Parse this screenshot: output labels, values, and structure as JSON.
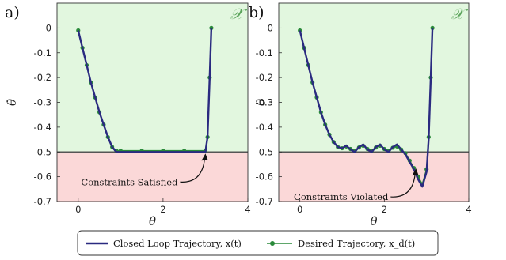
{
  "figure": {
    "legend": {
      "items": [
        {
          "label": "Closed Loop Trajectory, x(t)",
          "color": "#2a2a80",
          "style": "line"
        },
        {
          "label": "Desired Trajectory, x_d(t)",
          "color": "#2a8a3a",
          "style": "line-marker"
        }
      ]
    },
    "colors": {
      "safe_region": "#e2f7df",
      "unsafe_region": "#fbd8d8",
      "boundary": "#555555",
      "closed_loop": "#2a2a80",
      "desired": "#2a8a3a",
      "set_label": "#5aa35a"
    }
  },
  "chart_data": [
    {
      "type": "line",
      "panel_label": "a)",
      "set_label": "𝒳",
      "xlabel": "θ",
      "ylabel": "θ̇",
      "xlim": [
        -0.5,
        4
      ],
      "ylim": [
        -0.7,
        0.1
      ],
      "xticks": [
        0,
        2,
        4
      ],
      "yticks": [
        0,
        -0.1,
        -0.2,
        -0.3,
        -0.4,
        -0.5,
        -0.6,
        -0.7
      ],
      "ytick_labels": [
        "0",
        "-0.1",
        "-0.2",
        "-0.3",
        "-0.4",
        "-0.5",
        "-0.6",
        "-0.7"
      ],
      "constraint_boundary": -0.5,
      "annotation": "Constraints Satisfied",
      "annotation_point": [
        3.0,
        -0.5
      ],
      "series": [
        {
          "key": "closed_loop",
          "x": [
            0,
            0.1,
            0.2,
            0.3,
            0.4,
            0.5,
            0.6,
            0.7,
            0.8,
            0.9,
            1.0,
            1.5,
            2.0,
            2.5,
            3.0,
            3.05,
            3.1,
            3.14
          ],
          "y": [
            -0.01,
            -0.08,
            -0.15,
            -0.22,
            -0.28,
            -0.34,
            -0.39,
            -0.44,
            -0.48,
            -0.5,
            -0.5,
            -0.5,
            -0.5,
            -0.5,
            -0.5,
            -0.44,
            -0.2,
            0
          ]
        },
        {
          "key": "desired",
          "x": [
            0,
            0.1,
            0.2,
            0.3,
            0.4,
            0.5,
            0.6,
            0.7,
            0.8,
            0.9,
            1.0,
            1.5,
            2.0,
            2.5,
            3.0,
            3.05,
            3.1,
            3.14
          ],
          "y": [
            -0.01,
            -0.08,
            -0.15,
            -0.22,
            -0.28,
            -0.34,
            -0.39,
            -0.44,
            -0.48,
            -0.495,
            -0.495,
            -0.495,
            -0.495,
            -0.495,
            -0.495,
            -0.44,
            -0.2,
            0
          ]
        }
      ]
    },
    {
      "type": "line",
      "panel_label": "b)",
      "set_label": "𝒳",
      "xlabel": "θ",
      "ylabel": "θ̇",
      "xlim": [
        -0.5,
        4
      ],
      "ylim": [
        -0.7,
        0.1
      ],
      "xticks": [
        0,
        2,
        4
      ],
      "yticks": [
        0,
        -0.1,
        -0.2,
        -0.3,
        -0.4,
        -0.5,
        -0.6,
        -0.7
      ],
      "ytick_labels": [
        "0",
        "-0.1",
        "-0.2",
        "-0.3",
        "-0.4",
        "-0.5",
        "-0.6",
        "-0.7"
      ],
      "constraint_boundary": -0.5,
      "annotation": "Constraints Violated",
      "annotation_point": [
        2.75,
        -0.56
      ],
      "series": [
        {
          "key": "closed_loop",
          "x": [
            0,
            0.1,
            0.2,
            0.3,
            0.4,
            0.5,
            0.6,
            0.7,
            0.8,
            0.9,
            1.0,
            1.1,
            1.2,
            1.3,
            1.4,
            1.5,
            1.6,
            1.7,
            1.8,
            1.9,
            2.0,
            2.1,
            2.2,
            2.3,
            2.4,
            2.5,
            2.6,
            2.7,
            2.8,
            2.9,
            3.0,
            3.05,
            3.1,
            3.14
          ],
          "y": [
            -0.01,
            -0.08,
            -0.15,
            -0.22,
            -0.28,
            -0.34,
            -0.39,
            -0.43,
            -0.46,
            -0.48,
            -0.485,
            -0.475,
            -0.49,
            -0.5,
            -0.48,
            -0.47,
            -0.49,
            -0.5,
            -0.48,
            -0.47,
            -0.49,
            -0.5,
            -0.48,
            -0.47,
            -0.49,
            -0.51,
            -0.54,
            -0.57,
            -0.61,
            -0.64,
            -0.58,
            -0.45,
            -0.2,
            0
          ]
        },
        {
          "key": "desired",
          "x": [
            0,
            0.1,
            0.2,
            0.3,
            0.4,
            0.5,
            0.6,
            0.7,
            0.8,
            0.9,
            1.0,
            1.1,
            1.2,
            1.3,
            1.4,
            1.5,
            1.6,
            1.7,
            1.8,
            1.9,
            2.0,
            2.1,
            2.2,
            2.3,
            2.4,
            2.5,
            2.6,
            2.7,
            2.8,
            2.9,
            3.0,
            3.05,
            3.1,
            3.14
          ],
          "y": [
            -0.01,
            -0.08,
            -0.15,
            -0.22,
            -0.28,
            -0.34,
            -0.39,
            -0.43,
            -0.46,
            -0.48,
            -0.485,
            -0.478,
            -0.488,
            -0.495,
            -0.482,
            -0.475,
            -0.488,
            -0.495,
            -0.482,
            -0.475,
            -0.488,
            -0.495,
            -0.483,
            -0.478,
            -0.49,
            -0.505,
            -0.535,
            -0.565,
            -0.6,
            -0.63,
            -0.57,
            -0.44,
            -0.2,
            0
          ]
        }
      ]
    }
  ]
}
